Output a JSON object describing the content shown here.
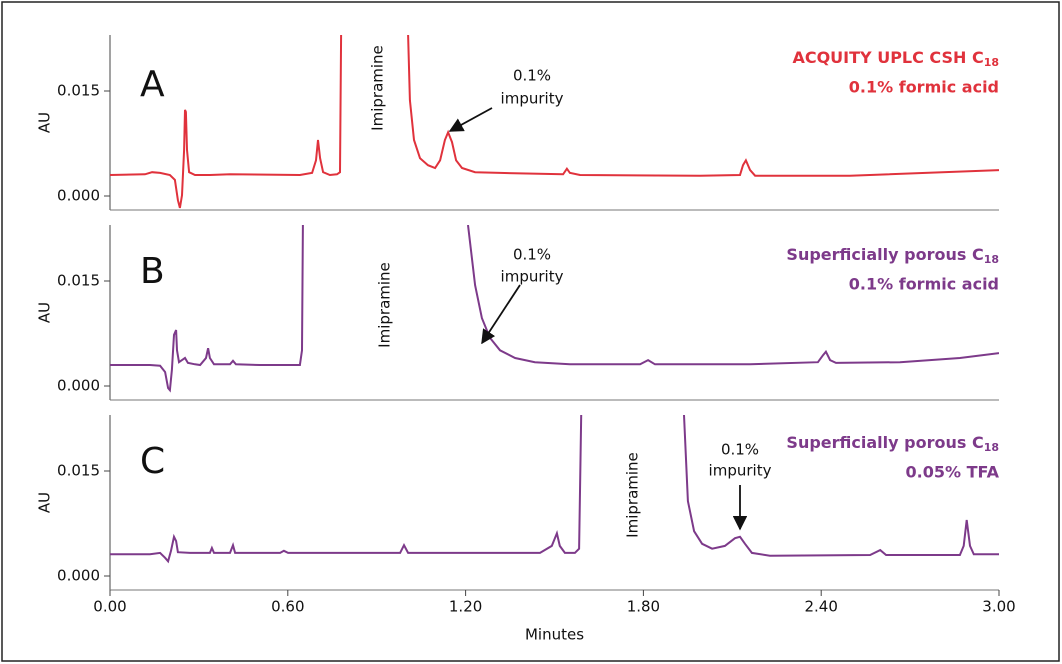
{
  "chart_data": [
    {
      "type": "line",
      "panel_label": "A",
      "title_main": "ACQUITY UPLC CSH C",
      "title_subscript": "18",
      "subtitle": "0.1% formic acid",
      "ylabel": "AU",
      "annotations": [
        "Imipramine",
        "0.1%",
        "impurity"
      ],
      "color": "#e0323c",
      "xlim": [
        0,
        3
      ],
      "ylim": [
        -0.002,
        0.023
      ],
      "yticks": [
        {
          "value": 0,
          "label": "0.000"
        },
        {
          "value": 0.015,
          "label": "0.015"
        }
      ],
      "x": [
        0,
        0.118,
        0.142,
        0.169,
        0.202,
        0.219,
        0.229,
        0.236,
        0.243,
        0.25,
        0.253,
        0.256,
        0.26,
        0.267,
        0.287,
        0.337,
        0.405,
        0.641,
        0.682,
        0.695,
        0.702,
        0.709,
        0.719,
        0.742,
        0.766,
        0.776,
        0.78,
        0.9,
        1.006,
        1.012,
        1.026,
        1.046,
        1.073,
        1.097,
        1.114,
        1.13,
        1.141,
        1.154,
        1.168,
        1.188,
        1.232,
        1.316,
        1.529,
        1.542,
        1.552,
        1.586,
        1.991,
        2.126,
        2.136,
        2.146,
        2.16,
        2.177,
        2.497,
        3.0
      ],
      "values": [
        0.003,
        0.0031,
        0.0034,
        0.0033,
        0.003,
        0.0023,
        -0.0006,
        -0.0017,
        0.0001,
        0.0066,
        0.0123,
        0.012,
        0.0066,
        0.0034,
        0.003,
        0.003,
        0.0031,
        0.003,
        0.0033,
        0.0051,
        0.008,
        0.0054,
        0.0034,
        0.003,
        0.0031,
        0.0034,
        0.023,
        null,
        0.023,
        0.0137,
        0.008,
        0.0054,
        0.0044,
        0.004,
        0.0051,
        0.008,
        0.0091,
        0.0077,
        0.0051,
        0.004,
        0.0034,
        0.0033,
        0.0031,
        0.0039,
        0.0033,
        0.003,
        0.0029,
        0.003,
        0.0044,
        0.0051,
        0.0037,
        0.0029,
        0.0029,
        0.0037
      ]
    },
    {
      "type": "line",
      "panel_label": "B",
      "title_main": "Superficially porous C",
      "title_subscript": "18",
      "subtitle": "0.1% formic acid",
      "ylabel": "AU",
      "annotations": [
        "Imipramine",
        "0.1%",
        "impurity"
      ],
      "color": "#7d3a8a",
      "xlim": [
        0,
        3
      ],
      "ylim": [
        -0.002,
        0.023
      ],
      "yticks": [
        {
          "value": 0,
          "label": "0.000"
        },
        {
          "value": 0.015,
          "label": "0.015"
        }
      ],
      "x": [
        0,
        0.135,
        0.169,
        0.186,
        0.196,
        0.202,
        0.209,
        0.216,
        0.223,
        0.226,
        0.233,
        0.243,
        0.253,
        0.263,
        0.287,
        0.304,
        0.324,
        0.331,
        0.337,
        0.351,
        0.405,
        0.415,
        0.425,
        0.506,
        0.641,
        0.648,
        0.651,
        0.9,
        1.208,
        1.232,
        1.255,
        1.282,
        1.316,
        1.367,
        1.434,
        1.552,
        1.789,
        1.816,
        1.839,
        2.16,
        2.389,
        2.406,
        2.416,
        2.43,
        2.45,
        2.666,
        2.868,
        3.0
      ],
      "values": [
        0.003,
        0.003,
        0.0029,
        0.002,
        -0.0003,
        -0.0006,
        0.0023,
        0.0073,
        0.008,
        0.0051,
        0.0034,
        0.0037,
        0.004,
        0.0033,
        0.0031,
        0.003,
        0.004,
        0.0054,
        0.004,
        0.0031,
        0.0031,
        0.0036,
        0.0031,
        0.003,
        0.003,
        0.0051,
        0.023,
        null,
        0.023,
        0.0144,
        0.0097,
        0.0069,
        0.0051,
        0.004,
        0.0034,
        0.0031,
        0.0031,
        0.0037,
        0.0031,
        0.0031,
        0.0034,
        0.0044,
        0.0049,
        0.0037,
        0.0033,
        0.0034,
        0.004,
        0.0047
      ]
    },
    {
      "type": "line",
      "panel_label": "C",
      "title_main": "Superficially porous C",
      "title_subscript": "18",
      "subtitle": "0.05% TFA",
      "ylabel": "AU",
      "annotations": [
        "Imipramine",
        "0.1%",
        "impurity"
      ],
      "color": "#7d3a8a",
      "xlabel": "Minutes",
      "xlim": [
        0,
        3
      ],
      "ylim": [
        -0.002,
        0.023
      ],
      "xticks": [
        {
          "value": 0,
          "label": "0.00"
        },
        {
          "value": 0.6,
          "label": "0.60"
        },
        {
          "value": 1.2,
          "label": "1.20"
        },
        {
          "value": 1.8,
          "label": "1.80"
        },
        {
          "value": 2.4,
          "label": "2.40"
        },
        {
          "value": 3,
          "label": "3.00"
        }
      ],
      "yticks": [
        {
          "value": 0,
          "label": "0.000"
        },
        {
          "value": 0.015,
          "label": "0.015"
        }
      ],
      "x": [
        0,
        0.135,
        0.169,
        0.186,
        0.196,
        0.206,
        0.216,
        0.223,
        0.229,
        0.27,
        0.337,
        0.344,
        0.351,
        0.405,
        0.415,
        0.422,
        0.574,
        0.587,
        0.601,
        0.979,
        0.992,
        1.006,
        1.451,
        1.491,
        1.508,
        1.518,
        1.535,
        1.569,
        1.583,
        1.59,
        1.75,
        1.937,
        1.95,
        1.971,
        1.998,
        2.032,
        2.075,
        2.109,
        2.126,
        2.143,
        2.166,
        2.227,
        2.565,
        2.599,
        2.619,
        2.868,
        2.881,
        2.891,
        2.902,
        2.915,
        3.0
      ],
      "values": [
        0.0031,
        0.0031,
        0.0033,
        0.0026,
        0.0021,
        0.0036,
        0.0056,
        0.005,
        0.0034,
        0.0033,
        0.0033,
        0.004,
        0.0033,
        0.0033,
        0.0044,
        0.0033,
        0.0033,
        0.0036,
        0.0033,
        0.0033,
        0.0044,
        0.0033,
        0.0033,
        0.0043,
        0.0061,
        0.0043,
        0.0033,
        0.0033,
        0.0039,
        0.023,
        null,
        0.023,
        0.0107,
        0.0064,
        0.0046,
        0.0039,
        0.0043,
        0.0054,
        0.0056,
        0.0046,
        0.0033,
        0.0029,
        0.003,
        0.0037,
        0.003,
        0.003,
        0.0043,
        0.008,
        0.0043,
        0.0031,
        0.0031
      ]
    }
  ]
}
